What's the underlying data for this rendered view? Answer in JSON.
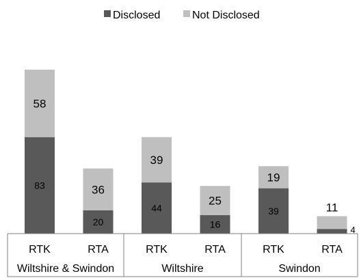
{
  "chart_data": {
    "type": "bar",
    "stacked": true,
    "legend_position": "top",
    "categories": [
      "RTK",
      "RTA",
      "RTK",
      "RTA",
      "RTK",
      "RTA"
    ],
    "groups": [
      {
        "label": "Wiltshire & Swindon",
        "categories": [
          "RTK",
          "RTA"
        ]
      },
      {
        "label": "Wiltshire",
        "categories": [
          "RTK",
          "RTA"
        ]
      },
      {
        "label": "Swindon",
        "categories": [
          "RTK",
          "RTA"
        ]
      }
    ],
    "series": [
      {
        "name": "Disclosed",
        "color": "#595959",
        "values": [
          83,
          20,
          44,
          16,
          39,
          4
        ]
      },
      {
        "name": "Not Disclosed",
        "color": "#bfbfbf",
        "values": [
          58,
          36,
          39,
          25,
          19,
          11
        ]
      }
    ],
    "ylim": [
      0,
      141
    ],
    "grid": false
  }
}
